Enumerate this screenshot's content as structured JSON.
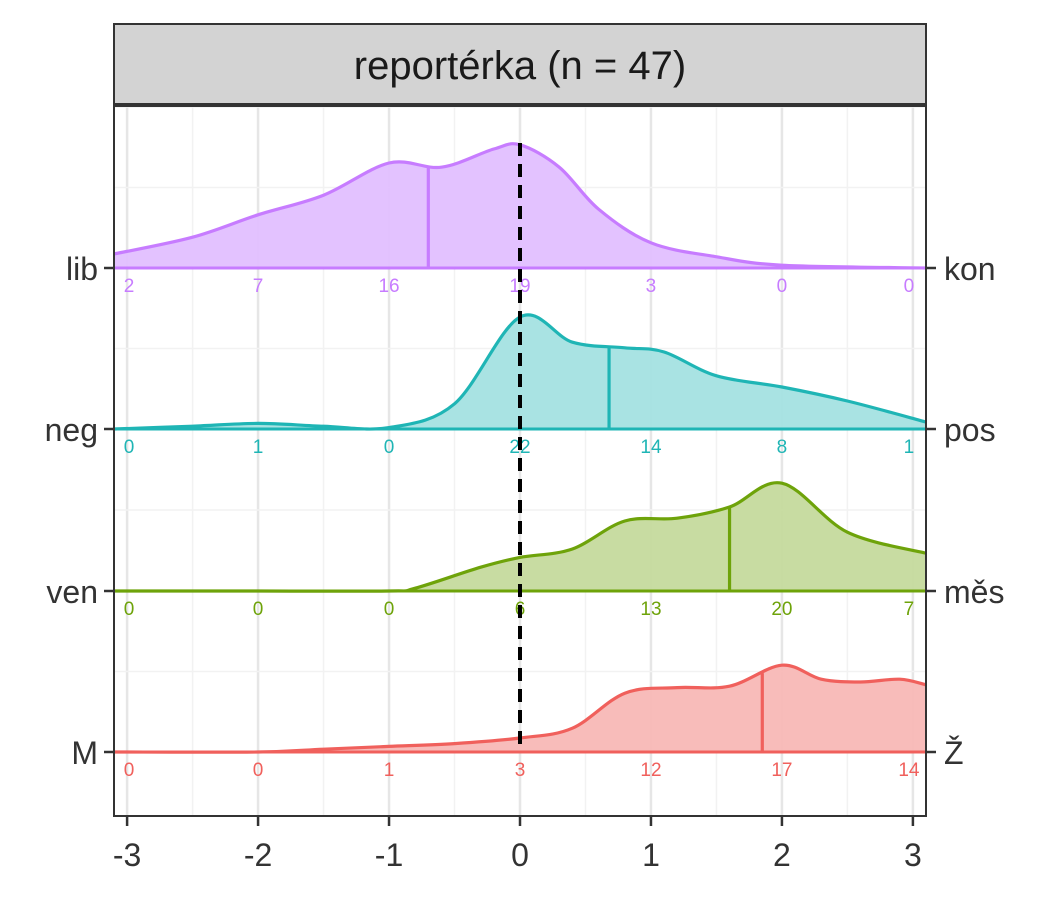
{
  "chart_data": {
    "type": "ridgeline",
    "title": "reportérka (n = 47)",
    "xlim": [
      -3.1,
      3.1
    ],
    "x_ticks": [
      -3,
      -2,
      -1,
      0,
      1,
      2,
      3
    ],
    "x_tick_labels": [
      "-3",
      "-2",
      "-1",
      "0",
      "1",
      "2",
      "3"
    ],
    "reference_line_x": 0,
    "grid": true,
    "count_positions": [
      -3,
      -2,
      -1,
      0,
      1,
      2,
      3
    ],
    "series": [
      {
        "left_label": "lib",
        "right_label": "kon",
        "color": "#c77cff",
        "fill": "#e2bfff",
        "mean": -0.7,
        "counts": [
          "2",
          "7",
          "16",
          "19",
          "3",
          "0",
          "0"
        ],
        "density": [
          [
            -3.1,
            0.1
          ],
          [
            -2.5,
            0.22
          ],
          [
            -2,
            0.38
          ],
          [
            -1.5,
            0.52
          ],
          [
            -1,
            0.75
          ],
          [
            -0.6,
            0.72
          ],
          [
            -0.2,
            0.85
          ],
          [
            0,
            0.88
          ],
          [
            0.3,
            0.72
          ],
          [
            0.6,
            0.42
          ],
          [
            1,
            0.18
          ],
          [
            1.5,
            0.08
          ],
          [
            2,
            0.02
          ],
          [
            3.1,
            0.0
          ]
        ]
      },
      {
        "left_label": "neg",
        "right_label": "pos",
        "color": "#1fb5b5",
        "fill": "#a4e1e1",
        "mean": 0.68,
        "counts": [
          "0",
          "1",
          "0",
          "22",
          "14",
          "8",
          "1"
        ],
        "density": [
          [
            -3.1,
            0.0
          ],
          [
            -2.5,
            0.02
          ],
          [
            -2,
            0.04
          ],
          [
            -1.5,
            0.02
          ],
          [
            -1,
            0.01
          ],
          [
            -0.5,
            0.18
          ],
          [
            0,
            0.8
          ],
          [
            0.4,
            0.62
          ],
          [
            0.8,
            0.58
          ],
          [
            1.1,
            0.55
          ],
          [
            1.5,
            0.38
          ],
          [
            2,
            0.3
          ],
          [
            2.5,
            0.2
          ],
          [
            3.1,
            0.05
          ]
        ]
      },
      {
        "left_label": "ven",
        "right_label": "měs",
        "color": "#6ea30a",
        "fill": "#c5da9d",
        "mean": 1.6,
        "counts": [
          "0",
          "0",
          "0",
          "6",
          "13",
          "20",
          "7"
        ],
        "density": [
          [
            -3.1,
            0.0
          ],
          [
            -2,
            0.0
          ],
          [
            -1,
            0.0
          ],
          [
            -0.8,
            0.02
          ],
          [
            -0.3,
            0.17
          ],
          [
            0,
            0.24
          ],
          [
            0.4,
            0.3
          ],
          [
            0.8,
            0.5
          ],
          [
            1.2,
            0.52
          ],
          [
            1.6,
            0.6
          ],
          [
            2,
            0.77
          ],
          [
            2.5,
            0.42
          ],
          [
            3.1,
            0.27
          ]
        ]
      },
      {
        "left_label": "M",
        "right_label": "Ž",
        "color": "#f0605c",
        "fill": "#f8b8b6",
        "mean": 1.85,
        "counts": [
          "0",
          "0",
          "1",
          "3",
          "12",
          "17",
          "14"
        ],
        "density": [
          [
            -3.1,
            0.0
          ],
          [
            -2,
            0.0
          ],
          [
            -1.5,
            0.02
          ],
          [
            -1,
            0.04
          ],
          [
            -0.5,
            0.06
          ],
          [
            0,
            0.1
          ],
          [
            0.4,
            0.17
          ],
          [
            0.8,
            0.42
          ],
          [
            1.2,
            0.46
          ],
          [
            1.6,
            0.47
          ],
          [
            2,
            0.62
          ],
          [
            2.3,
            0.52
          ],
          [
            2.6,
            0.5
          ],
          [
            2.9,
            0.52
          ],
          [
            3.1,
            0.48
          ]
        ]
      }
    ]
  }
}
